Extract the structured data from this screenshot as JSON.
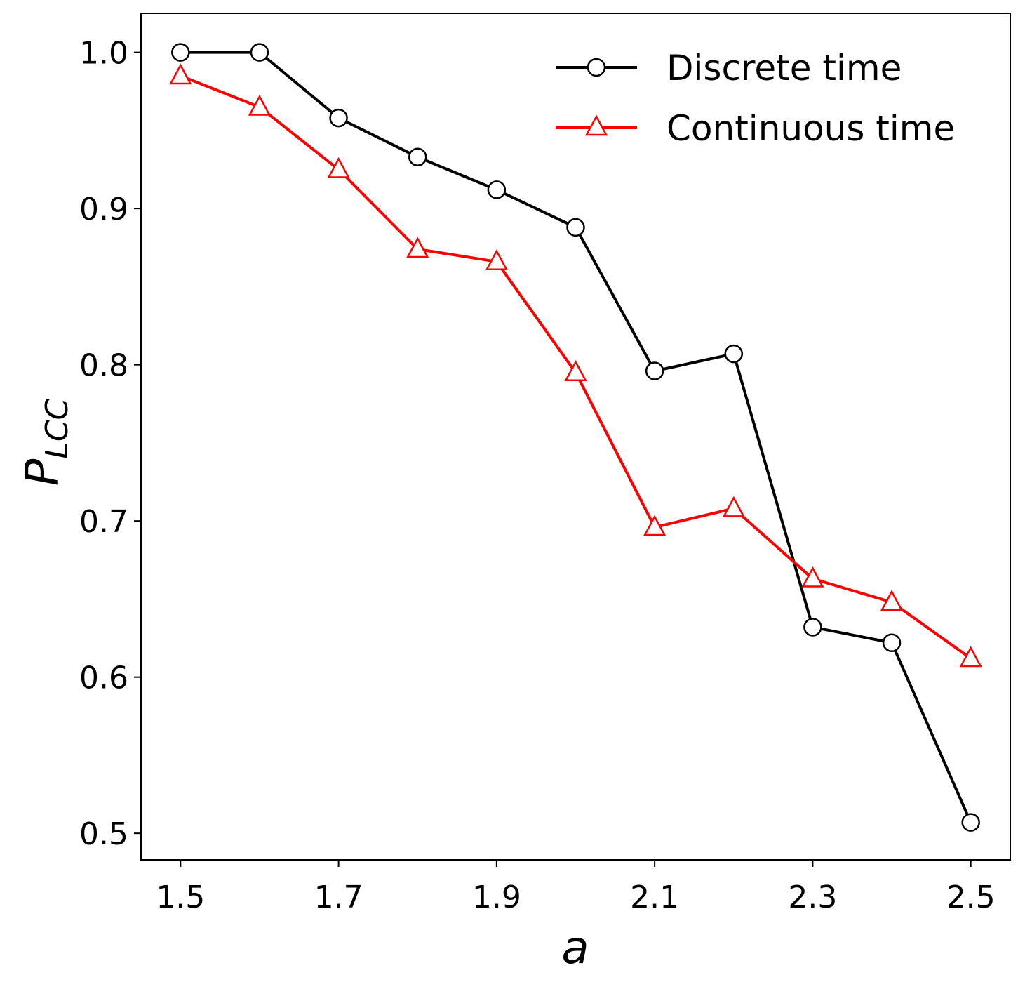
{
  "chart_data": {
    "type": "line",
    "title": "",
    "xlabel": "a",
    "ylabel_main": "P",
    "ylabel_sub": "LCC",
    "x": [
      1.5,
      1.6,
      1.7,
      1.8,
      1.9,
      2.0,
      2.1,
      2.2,
      2.3,
      2.4,
      2.5
    ],
    "xlim": [
      1.45,
      2.55
    ],
    "ylim": [
      0.483,
      1.025
    ],
    "xticks": [
      1.5,
      1.7,
      1.9,
      2.1,
      2.3,
      2.5
    ],
    "xtick_labels": [
      "1.5",
      "1.7",
      "1.9",
      "2.1",
      "2.3",
      "2.5"
    ],
    "yticks": [
      0.5,
      0.6,
      0.7,
      0.8,
      0.9,
      1.0
    ],
    "ytick_labels": [
      "0.5",
      "0.6",
      "0.7",
      "0.8",
      "0.9",
      "1.0"
    ],
    "grid": false,
    "legend_position": "top-right",
    "series": [
      {
        "name": "Discrete time",
        "color": "#000000",
        "marker": "circle",
        "values": [
          1.0,
          1.0,
          0.958,
          0.933,
          0.912,
          0.888,
          0.796,
          0.807,
          0.632,
          0.622,
          0.507
        ]
      },
      {
        "name": "Continuous time",
        "color": "#ff0000",
        "marker": "triangle",
        "values": [
          0.985,
          0.965,
          0.925,
          0.874,
          0.866,
          0.795,
          0.696,
          0.708,
          0.663,
          0.648,
          0.612
        ]
      }
    ]
  }
}
